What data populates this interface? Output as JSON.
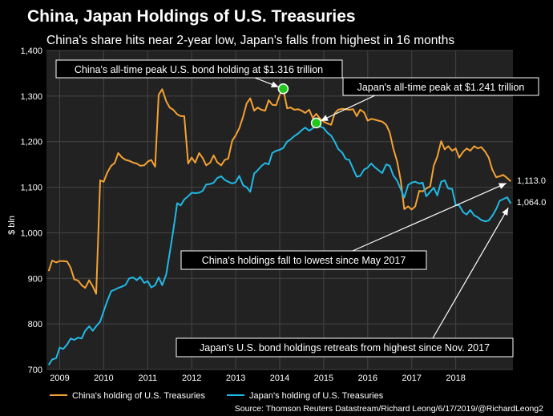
{
  "header": {
    "title": "China, Japan Holdings of U.S. Treasuries",
    "subtitle": "China's share hits near 2-year low, Japan's falls from highest in 16 months"
  },
  "chart_data": {
    "type": "line",
    "ylabel": "$ bln",
    "xlabel": "",
    "ylim": [
      700,
      1400
    ],
    "yticks": [
      "1,400",
      "1,300",
      "1,200",
      "1,100",
      "1,000",
      "900",
      "800",
      "700"
    ],
    "ytick_values": [
      1400,
      1300,
      1200,
      1100,
      1000,
      900,
      800,
      700
    ],
    "xticks": [
      "2009",
      "2010",
      "2011",
      "2012",
      "2013",
      "2014",
      "2015",
      "2016",
      "2017",
      "2018"
    ],
    "xtick_values": [
      2009,
      2010,
      2011,
      2012,
      2013,
      2014,
      2015,
      2016,
      2017,
      2018
    ],
    "xlim": [
      2008.7,
      2019.3
    ],
    "grid": true,
    "colors": {
      "china": "#f4a233",
      "japan": "#21b9e6",
      "bg": "#000000",
      "plot_bg": "#222222",
      "grid": "#444444",
      "marker": "#1fc81a"
    },
    "series": [
      {
        "name": "China's holding of U.S. Treasuries",
        "key": "china",
        "points": [
          [
            2008.75,
            916
          ],
          [
            2008.83,
            939
          ],
          [
            2008.92,
            935
          ],
          [
            2009.0,
            938
          ],
          [
            2009.08,
            938
          ],
          [
            2009.17,
            937
          ],
          [
            2009.25,
            923
          ],
          [
            2009.33,
            898
          ],
          [
            2009.42,
            895
          ],
          [
            2009.5,
            885
          ],
          [
            2009.58,
            879
          ],
          [
            2009.67,
            896
          ],
          [
            2009.75,
            883
          ],
          [
            2009.83,
            866
          ],
          [
            2009.92,
            1115
          ],
          [
            2010.0,
            1112
          ],
          [
            2010.08,
            1132
          ],
          [
            2010.17,
            1147
          ],
          [
            2010.25,
            1153
          ],
          [
            2010.33,
            1175
          ],
          [
            2010.42,
            1165
          ],
          [
            2010.5,
            1160
          ],
          [
            2010.58,
            1158
          ],
          [
            2010.67,
            1154
          ],
          [
            2010.75,
            1152
          ],
          [
            2010.83,
            1147
          ],
          [
            2010.92,
            1148
          ],
          [
            2011.0,
            1156
          ],
          [
            2011.08,
            1160
          ],
          [
            2011.17,
            1145
          ],
          [
            2011.25,
            1303
          ],
          [
            2011.33,
            1315
          ],
          [
            2011.42,
            1289
          ],
          [
            2011.5,
            1275
          ],
          [
            2011.58,
            1270
          ],
          [
            2011.67,
            1260
          ],
          [
            2011.75,
            1256
          ],
          [
            2011.83,
            1256
          ],
          [
            2011.92,
            1152
          ],
          [
            2012.0,
            1165
          ],
          [
            2012.08,
            1154
          ],
          [
            2012.17,
            1175
          ],
          [
            2012.25,
            1164
          ],
          [
            2012.33,
            1148
          ],
          [
            2012.42,
            1154
          ],
          [
            2012.5,
            1170
          ],
          [
            2012.58,
            1155
          ],
          [
            2012.67,
            1148
          ],
          [
            2012.75,
            1160
          ],
          [
            2012.83,
            1163
          ],
          [
            2012.92,
            1202
          ],
          [
            2013.0,
            1214
          ],
          [
            2013.08,
            1229
          ],
          [
            2013.17,
            1255
          ],
          [
            2013.25,
            1284
          ],
          [
            2013.33,
            1295
          ],
          [
            2013.42,
            1268
          ],
          [
            2013.5,
            1275
          ],
          [
            2013.58,
            1270
          ],
          [
            2013.67,
            1268
          ],
          [
            2013.75,
            1291
          ],
          [
            2013.83,
            1281
          ],
          [
            2013.92,
            1280
          ],
          [
            2014.0,
            1303
          ],
          [
            2014.08,
            1316
          ],
          [
            2014.17,
            1273
          ],
          [
            2014.25,
            1275
          ],
          [
            2014.33,
            1270
          ],
          [
            2014.42,
            1271
          ],
          [
            2014.5,
            1268
          ],
          [
            2014.58,
            1263
          ],
          [
            2014.67,
            1270
          ],
          [
            2014.75,
            1252
          ],
          [
            2014.83,
            1261
          ],
          [
            2014.92,
            1250
          ],
          [
            2015.0,
            1244
          ],
          [
            2015.08,
            1240
          ],
          [
            2015.17,
            1237
          ],
          [
            2015.25,
            1262
          ],
          [
            2015.33,
            1270
          ],
          [
            2015.42,
            1272
          ],
          [
            2015.5,
            1271
          ],
          [
            2015.58,
            1270
          ],
          [
            2015.67,
            1271
          ],
          [
            2015.75,
            1256
          ],
          [
            2015.83,
            1270
          ],
          [
            2015.92,
            1264
          ],
          [
            2016.0,
            1246
          ],
          [
            2016.08,
            1250
          ],
          [
            2016.17,
            1248
          ],
          [
            2016.25,
            1246
          ],
          [
            2016.33,
            1244
          ],
          [
            2016.42,
            1237
          ],
          [
            2016.5,
            1220
          ],
          [
            2016.58,
            1185
          ],
          [
            2016.67,
            1156
          ],
          [
            2016.75,
            1115
          ],
          [
            2016.83,
            1052
          ],
          [
            2016.92,
            1058
          ],
          [
            2017.0,
            1051
          ],
          [
            2017.08,
            1058
          ],
          [
            2017.17,
            1092
          ],
          [
            2017.25,
            1091
          ],
          [
            2017.33,
            1097
          ],
          [
            2017.42,
            1102
          ],
          [
            2017.5,
            1147
          ],
          [
            2017.58,
            1167
          ],
          [
            2017.67,
            1201
          ],
          [
            2017.75,
            1183
          ],
          [
            2017.83,
            1190
          ],
          [
            2017.92,
            1180
          ],
          [
            2018.0,
            1185
          ],
          [
            2018.08,
            1165
          ],
          [
            2018.17,
            1178
          ],
          [
            2018.25,
            1185
          ],
          [
            2018.33,
            1180
          ],
          [
            2018.42,
            1190
          ],
          [
            2018.5,
            1185
          ],
          [
            2018.58,
            1188
          ],
          [
            2018.67,
            1178
          ],
          [
            2018.75,
            1165
          ],
          [
            2018.83,
            1139
          ],
          [
            2018.92,
            1122
          ],
          [
            2019.0,
            1124
          ],
          [
            2019.08,
            1127
          ],
          [
            2019.17,
            1120
          ],
          [
            2019.25,
            1113
          ]
        ]
      },
      {
        "name": "Japan's holding of U.S. Treasuries",
        "key": "japan",
        "points": [
          [
            2008.75,
            710
          ],
          [
            2008.83,
            722
          ],
          [
            2008.92,
            725
          ],
          [
            2009.0,
            748
          ],
          [
            2009.08,
            745
          ],
          [
            2009.17,
            755
          ],
          [
            2009.25,
            768
          ],
          [
            2009.33,
            765
          ],
          [
            2009.42,
            770
          ],
          [
            2009.5,
            768
          ],
          [
            2009.58,
            785
          ],
          [
            2009.67,
            795
          ],
          [
            2009.75,
            785
          ],
          [
            2009.83,
            795
          ],
          [
            2009.92,
            805
          ],
          [
            2010.0,
            828
          ],
          [
            2010.08,
            850
          ],
          [
            2010.17,
            872
          ],
          [
            2010.25,
            875
          ],
          [
            2010.33,
            879
          ],
          [
            2010.42,
            882
          ],
          [
            2010.5,
            886
          ],
          [
            2010.58,
            900
          ],
          [
            2010.67,
            902
          ],
          [
            2010.75,
            896
          ],
          [
            2010.83,
            903
          ],
          [
            2010.92,
            890
          ],
          [
            2011.0,
            894
          ],
          [
            2011.08,
            880
          ],
          [
            2011.17,
            885
          ],
          [
            2011.25,
            902
          ],
          [
            2011.33,
            885
          ],
          [
            2011.42,
            908
          ],
          [
            2011.5,
            955
          ],
          [
            2011.58,
            1004
          ],
          [
            2011.67,
            1065
          ],
          [
            2011.75,
            1060
          ],
          [
            2011.83,
            1073
          ],
          [
            2011.92,
            1080
          ],
          [
            2012.0,
            1088
          ],
          [
            2012.08,
            1087
          ],
          [
            2012.17,
            1088
          ],
          [
            2012.25,
            1092
          ],
          [
            2012.33,
            1106
          ],
          [
            2012.42,
            1107
          ],
          [
            2012.5,
            1110
          ],
          [
            2012.58,
            1120
          ],
          [
            2012.67,
            1124
          ],
          [
            2012.75,
            1116
          ],
          [
            2012.83,
            1112
          ],
          [
            2012.92,
            1108
          ],
          [
            2013.0,
            1111
          ],
          [
            2013.08,
            1125
          ],
          [
            2013.17,
            1104
          ],
          [
            2013.25,
            1100
          ],
          [
            2013.33,
            1090
          ],
          [
            2013.42,
            1130
          ],
          [
            2013.5,
            1137
          ],
          [
            2013.58,
            1146
          ],
          [
            2013.67,
            1153
          ],
          [
            2013.75,
            1150
          ],
          [
            2013.83,
            1175
          ],
          [
            2013.92,
            1180
          ],
          [
            2014.0,
            1182
          ],
          [
            2014.08,
            1186
          ],
          [
            2014.17,
            1200
          ],
          [
            2014.25,
            1205
          ],
          [
            2014.33,
            1212
          ],
          [
            2014.42,
            1218
          ],
          [
            2014.5,
            1225
          ],
          [
            2014.58,
            1231
          ],
          [
            2014.67,
            1224
          ],
          [
            2014.75,
            1229
          ],
          [
            2014.83,
            1241
          ],
          [
            2014.92,
            1233
          ],
          [
            2015.0,
            1230
          ],
          [
            2015.08,
            1220
          ],
          [
            2015.17,
            1213
          ],
          [
            2015.25,
            1200
          ],
          [
            2015.33,
            1184
          ],
          [
            2015.42,
            1176
          ],
          [
            2015.5,
            1162
          ],
          [
            2015.58,
            1160
          ],
          [
            2015.67,
            1140
          ],
          [
            2015.75,
            1123
          ],
          [
            2015.83,
            1125
          ],
          [
            2015.92,
            1139
          ],
          [
            2016.0,
            1143
          ],
          [
            2016.08,
            1152
          ],
          [
            2016.17,
            1143
          ],
          [
            2016.25,
            1137
          ],
          [
            2016.33,
            1131
          ],
          [
            2016.42,
            1150
          ],
          [
            2016.5,
            1147
          ],
          [
            2016.58,
            1126
          ],
          [
            2016.67,
            1114
          ],
          [
            2016.75,
            1096
          ],
          [
            2016.83,
            1077
          ],
          [
            2016.92,
            1105
          ],
          [
            2017.0,
            1110
          ],
          [
            2017.08,
            1112
          ],
          [
            2017.17,
            1108
          ],
          [
            2017.25,
            1110
          ],
          [
            2017.33,
            1080
          ],
          [
            2017.42,
            1090
          ],
          [
            2017.5,
            1099
          ],
          [
            2017.58,
            1082
          ],
          [
            2017.67,
            1112
          ],
          [
            2017.75,
            1115
          ],
          [
            2017.83,
            1097
          ],
          [
            2017.92,
            1096
          ],
          [
            2018.0,
            1061
          ],
          [
            2018.08,
            1060
          ],
          [
            2018.17,
            1045
          ],
          [
            2018.25,
            1040
          ],
          [
            2018.33,
            1050
          ],
          [
            2018.42,
            1038
          ],
          [
            2018.5,
            1034
          ],
          [
            2018.58,
            1028
          ],
          [
            2018.67,
            1025
          ],
          [
            2018.75,
            1027
          ],
          [
            2018.83,
            1037
          ],
          [
            2018.92,
            1052
          ],
          [
            2019.0,
            1070
          ],
          [
            2019.08,
            1074
          ],
          [
            2019.17,
            1078
          ],
          [
            2019.25,
            1064
          ]
        ]
      }
    ],
    "peaks": [
      {
        "series": "china",
        "x": 2014.08,
        "y": 1316
      },
      {
        "series": "japan",
        "x": 2014.83,
        "y": 1241
      }
    ],
    "end_labels": [
      {
        "series": "china",
        "text": "1,113.0",
        "y": 1113
      },
      {
        "series": "japan",
        "text": "1,064.0",
        "y": 1064
      }
    ],
    "annotations": [
      {
        "text": "China's all-time peak U.S. bond holding at $1.316 trillion",
        "target_series": "china",
        "target_x": 2014.08
      },
      {
        "text": "Japan's all-time peak at $1.241 trillion",
        "target_series": "japan",
        "target_x": 2014.83
      },
      {
        "text": "China's holdings fall to lowest since May 2017",
        "target_series": "china",
        "target_x": 2019.25
      },
      {
        "text": "Japan's U.S. bond holdings retreats from highest since Nov. 2017",
        "target_series": "japan",
        "target_x": 2019.25
      }
    ],
    "legend": {
      "placement": "bottom-left",
      "items": [
        "China's holding of U.S. Treasuries",
        "Japan's holding of U.S. Treasuries"
      ]
    }
  },
  "footer": {
    "source": "Source: Thomson Reuters Datastream/Richard Leong/6/17/2019/@RichardLeong2"
  }
}
